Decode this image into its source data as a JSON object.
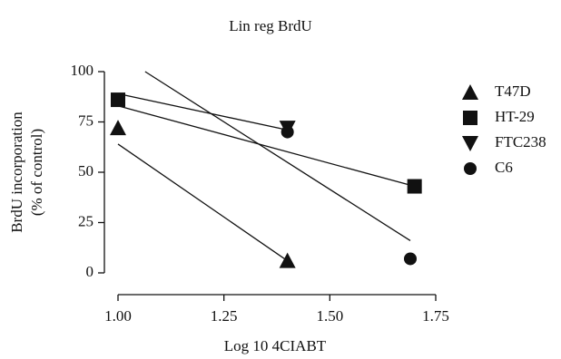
{
  "chart_data": {
    "type": "scatter",
    "title": "Lin reg BrdU",
    "xlabel": "Log 10 4CIABT",
    "ylabel": [
      "BrdU incorporation",
      "(% of control)"
    ],
    "xlim": [
      1,
      1.75
    ],
    "xticks": [
      {
        "value": 1,
        "label": "1.00"
      },
      1.25,
      {
        "value": 1.5,
        "label": "1.50"
      },
      1.75
    ],
    "ylim": [
      0,
      100
    ],
    "yticks": [
      0,
      25,
      50,
      75,
      100
    ],
    "legend": "right",
    "series": [
      {
        "name": "T47D",
        "marker": "triangle",
        "color": "#111111",
        "x": [
          1,
          1.4
        ],
        "values": [
          72,
          6
        ],
        "fit_x": [
          1,
          1.4
        ],
        "fit_y": [
          64,
          6
        ]
      },
      {
        "name": "HT-29",
        "marker": "square",
        "color": "#111111",
        "x": [
          1,
          1.7
        ],
        "values": [
          86,
          43
        ],
        "fit_x": [
          1,
          1.7
        ],
        "fit_y": [
          83,
          43
        ]
      },
      {
        "name": "FTC238",
        "marker": "triangle-down",
        "color": "#111111",
        "x": [
          1.4
        ],
        "values": [
          72
        ],
        "fit_x": [
          1,
          1.4
        ],
        "fit_y": [
          89,
          71
        ]
      },
      {
        "name": "C6",
        "marker": "circle",
        "color": "#111111",
        "x": [
          1.4,
          1.69
        ],
        "values": [
          70,
          7
        ],
        "fit_x": [
          1.064,
          1.69
        ],
        "fit_y": [
          100,
          16
        ]
      }
    ]
  }
}
